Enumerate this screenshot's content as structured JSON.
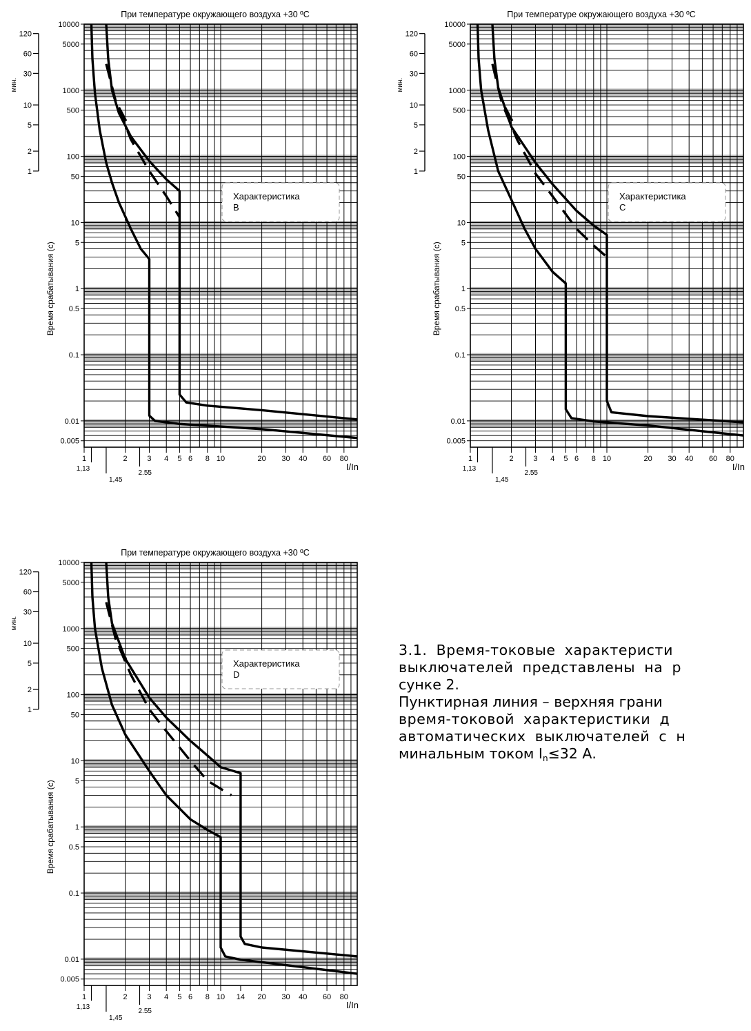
{
  "chart_data": [
    {
      "type": "line",
      "title": "При температуре окружающего воздуха +30 ºC",
      "x_scale": "log",
      "y_scale": "log",
      "xlim": [
        1,
        100
      ],
      "ylim": [
        0.004,
        10000
      ],
      "xlabel": "I/In",
      "ylabel": "Время срабатывания (с)",
      "y2label": "мин.",
      "x_ticks": [
        "1",
        "2",
        "3",
        "4",
        "5",
        "6",
        "8",
        "10",
        "20",
        "30",
        "40",
        "60",
        "80"
      ],
      "x_extra_ticks": [
        "1,13",
        "1,45",
        "2.55"
      ],
      "y_ticks": [
        "10000",
        "5000",
        "1000",
        "500",
        "100",
        "50",
        "10",
        "5",
        "1",
        "0.5",
        "0.1",
        "0.01",
        "0.005"
      ],
      "y2_ticks": [
        "120",
        "60",
        "30",
        "10",
        "5",
        "2",
        "1"
      ],
      "grid": true,
      "annotation": {
        "label": "Характеристика",
        "letter": "B"
      },
      "series": [
        {
          "style": "solid",
          "points": [
            [
              1.13,
              10000
            ],
            [
              1.15,
              3000
            ],
            [
              1.2,
              900
            ],
            [
              1.3,
              250
            ],
            [
              1.45,
              80
            ],
            [
              1.6,
              40
            ],
            [
              1.8,
              20
            ],
            [
              2.2,
              8
            ],
            [
              2.6,
              4
            ],
            [
              3,
              2.8
            ],
            [
              3,
              0.012
            ],
            [
              3.3,
              0.01
            ],
            [
              5,
              0.009
            ],
            [
              20,
              0.0075
            ],
            [
              100,
              0.0055
            ]
          ]
        },
        {
          "style": "solid",
          "points": [
            [
              1.45,
              10000
            ],
            [
              1.5,
              3000
            ],
            [
              1.6,
              1000
            ],
            [
              1.8,
              450
            ],
            [
              2.2,
              200
            ],
            [
              3,
              85
            ],
            [
              4,
              45
            ],
            [
              5,
              30
            ],
            [
              5,
              0.025
            ],
            [
              5.6,
              0.019
            ],
            [
              8,
              0.017
            ],
            [
              20,
              0.0145
            ],
            [
              100,
              0.0105
            ]
          ]
        },
        {
          "style": "dashed",
          "points": [
            [
              1.45,
              2500
            ],
            [
              1.7,
              700
            ],
            [
              2.2,
              180
            ],
            [
              3,
              60
            ],
            [
              4,
              25
            ],
            [
              5,
              12
            ]
          ]
        },
        {
          "style": "dashed",
          "points": [
            [
              1.8,
              550
            ],
            [
              2.1,
              300
            ]
          ]
        }
      ]
    },
    {
      "type": "line",
      "title": "При температуре окружающего воздуха +30 ºC",
      "x_scale": "log",
      "y_scale": "log",
      "xlim": [
        1,
        100
      ],
      "ylim": [
        0.004,
        10000
      ],
      "xlabel": "I/In",
      "ylabel": "Время срабатывания (с)",
      "y2label": "мин.",
      "x_ticks": [
        "1",
        "2",
        "3",
        "4",
        "5",
        "6",
        "8",
        "10",
        "20",
        "30",
        "40",
        "60",
        "80"
      ],
      "x_extra_ticks": [
        "1,13",
        "1,45",
        "2.55"
      ],
      "y_ticks": [
        "10000",
        "5000",
        "1000",
        "500",
        "100",
        "50",
        "10",
        "5",
        "1",
        "0.5",
        "0.1",
        "0.01",
        "0.005"
      ],
      "y2_ticks": [
        "120",
        "60",
        "30",
        "10",
        "5",
        "2",
        "1"
      ],
      "grid": true,
      "annotation": {
        "label": "Характеристика",
        "letter": "C"
      },
      "series": [
        {
          "style": "solid",
          "points": [
            [
              1.13,
              10000
            ],
            [
              1.15,
              3000
            ],
            [
              1.2,
              1000
            ],
            [
              1.35,
              250
            ],
            [
              1.6,
              60
            ],
            [
              2,
              22
            ],
            [
              2.5,
              8
            ],
            [
              3,
              4
            ],
            [
              4,
              1.8
            ],
            [
              5,
              1.2
            ],
            [
              5,
              0.015
            ],
            [
              5.5,
              0.011
            ],
            [
              8,
              0.0098
            ],
            [
              20,
              0.0085
            ],
            [
              100,
              0.006
            ]
          ]
        },
        {
          "style": "solid",
          "points": [
            [
              1.45,
              10000
            ],
            [
              1.5,
              3000
            ],
            [
              1.6,
              1100
            ],
            [
              2,
              280
            ],
            [
              3,
              80
            ],
            [
              4,
              38
            ],
            [
              6,
              15
            ],
            [
              8,
              9
            ],
            [
              10,
              6.5
            ],
            [
              10,
              0.02
            ],
            [
              10.8,
              0.0135
            ],
            [
              20,
              0.0118
            ],
            [
              100,
              0.0095
            ]
          ]
        },
        {
          "style": "dashed",
          "points": [
            [
              1.45,
              2500
            ],
            [
              1.7,
              650
            ],
            [
              2.2,
              180
            ],
            [
              3,
              55
            ],
            [
              4,
              25
            ],
            [
              6,
              8
            ],
            [
              8,
              4.5
            ],
            [
              10,
              3
            ]
          ]
        },
        {
          "style": "dashed",
          "points": [
            [
              1.8,
              550
            ],
            [
              2.1,
              300
            ]
          ]
        }
      ]
    },
    {
      "type": "line",
      "title": "При температуре окружающего воздуха +30 ºC",
      "x_scale": "log",
      "y_scale": "log",
      "xlim": [
        1,
        100
      ],
      "ylim": [
        0.004,
        10000
      ],
      "xlabel": "I/In",
      "ylabel": "Время срабатывания (с)",
      "y2label": "мин.",
      "x_ticks": [
        "1",
        "2",
        "3",
        "4",
        "5",
        "6",
        "8",
        "10",
        "14",
        "20",
        "30",
        "40",
        "60",
        "80"
      ],
      "x_extra_ticks": [
        "1,13",
        "1,45",
        "2.55"
      ],
      "y_ticks": [
        "10000",
        "5000",
        "1000",
        "500",
        "100",
        "50",
        "10",
        "5",
        "1",
        "0.5",
        "0.1",
        "0.01",
        "0.005"
      ],
      "y2_ticks": [
        "120",
        "60",
        "30",
        "10",
        "5",
        "2",
        "1"
      ],
      "grid": true,
      "annotation": {
        "label": "Характеристика",
        "letter": "D"
      },
      "series": [
        {
          "style": "solid",
          "points": [
            [
              1.13,
              10000
            ],
            [
              1.15,
              3000
            ],
            [
              1.2,
              1000
            ],
            [
              1.35,
              250
            ],
            [
              1.6,
              70
            ],
            [
              2,
              25
            ],
            [
              3,
              7
            ],
            [
              4,
              3
            ],
            [
              6,
              1.3
            ],
            [
              8,
              0.9
            ],
            [
              10,
              0.7
            ],
            [
              10,
              0.015
            ],
            [
              10.8,
              0.011
            ],
            [
              14,
              0.0098
            ],
            [
              20,
              0.009
            ],
            [
              100,
              0.006
            ]
          ]
        },
        {
          "style": "solid",
          "points": [
            [
              1.45,
              10000
            ],
            [
              1.5,
              3000
            ],
            [
              1.6,
              1200
            ],
            [
              2,
              350
            ],
            [
              3,
              90
            ],
            [
              4,
              45
            ],
            [
              6,
              20
            ],
            [
              8,
              12
            ],
            [
              10,
              8
            ],
            [
              14,
              6.5
            ],
            [
              14,
              0.022
            ],
            [
              15,
              0.017
            ],
            [
              20,
              0.015
            ],
            [
              100,
              0.011
            ]
          ]
        },
        {
          "style": "dashed",
          "points": [
            [
              1.45,
              2500
            ],
            [
              1.7,
              700
            ],
            [
              2.2,
              200
            ],
            [
              3,
              60
            ],
            [
              4,
              28
            ],
            [
              6,
              10
            ],
            [
              8,
              5
            ],
            [
              12,
              3
            ]
          ]
        },
        {
          "style": "dashed",
          "points": [
            [
              1.8,
              550
            ],
            [
              2.1,
              300
            ]
          ]
        }
      ]
    }
  ],
  "text_block": {
    "p1": "3.1. Время-токовые характеристи",
    "p2": "выключателей представлены на р",
    "p3": "сунке 2.",
    "p4": "Пунктирная линия – верхняя грани",
    "p5": "время-токовой характеристики д",
    "p6": "автоматических выключателей с н",
    "p7_before": "минальным током I",
    "p7_sub": "n",
    "p7_after": "≤32 А."
  }
}
